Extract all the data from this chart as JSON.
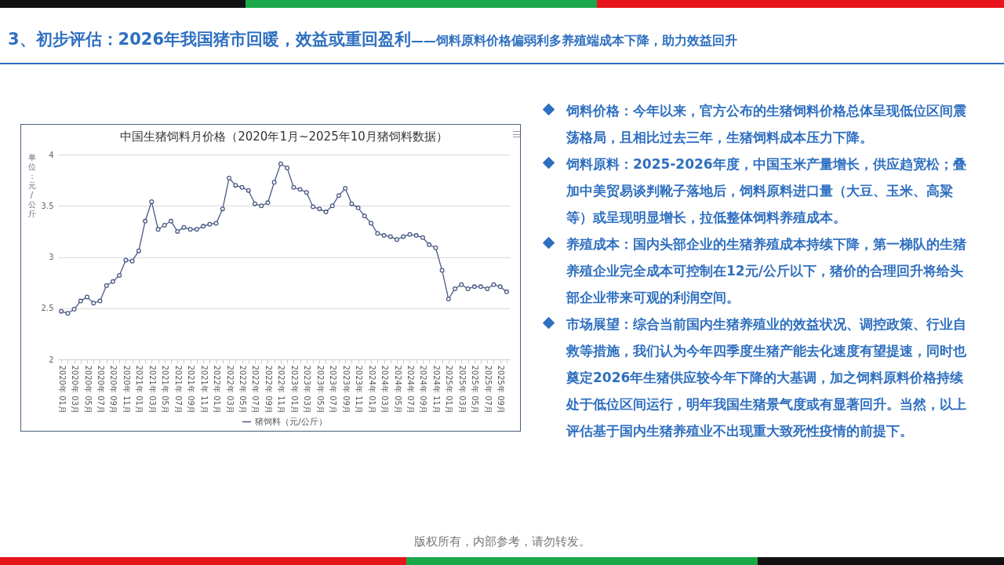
{
  "chart_data": {
    "type": "line",
    "title": "中国生猪饲料月价格（2020年1月~2025年10月猪饲料数据）",
    "ylabel": "单位：元/公斤",
    "categories": [
      "2020年 01月",
      null,
      "2020年 03月",
      null,
      "2020年 05月",
      null,
      "2020年 07月",
      null,
      "2020年 09月",
      null,
      "2020年 11月",
      null,
      "2021年 01月",
      null,
      "2021年 03月",
      null,
      "2021年 05月",
      null,
      "2021年 07月",
      null,
      "2021年 09月",
      null,
      "2021年 11月",
      null,
      "2022年 01月",
      null,
      "2022年 03月",
      null,
      "2022年 05月",
      null,
      "2022年 07月",
      null,
      "2022年 09月",
      null,
      "2022年 11月",
      null,
      "2023年 01月",
      null,
      "2023年 03月",
      null,
      "2023年 05月",
      null,
      "2023年 07月",
      null,
      "2023年 09月",
      null,
      "2023年 11月",
      null,
      "2024年 01月",
      null,
      "2024年 03月",
      null,
      "2024年 05月",
      null,
      "2024年 07月",
      null,
      "2024年 09月",
      null,
      "2024年 11月",
      null,
      "2025年 01月",
      null,
      "2025年 03月",
      null,
      "2025年 05月",
      null,
      "2025年 07月",
      null,
      "2025年 09月",
      null
    ],
    "series": [
      {
        "name": "猪饲料（元/公斤）",
        "color": "#4a5a85",
        "values": [
          2.47,
          2.45,
          2.49,
          2.57,
          2.61,
          2.55,
          2.57,
          2.72,
          2.76,
          2.82,
          2.97,
          2.96,
          3.06,
          3.35,
          3.54,
          3.27,
          3.31,
          3.35,
          3.25,
          3.29,
          3.27,
          3.27,
          3.3,
          3.32,
          3.33,
          3.47,
          3.77,
          3.7,
          3.68,
          3.65,
          3.52,
          3.5,
          3.53,
          3.73,
          3.91,
          3.87,
          3.68,
          3.66,
          3.63,
          3.49,
          3.47,
          3.44,
          3.5,
          3.6,
          3.67,
          3.52,
          3.48,
          3.4,
          3.33,
          3.23,
          3.21,
          3.2,
          3.17,
          3.2,
          3.22,
          3.21,
          3.19,
          3.12,
          3.09,
          2.87,
          2.59,
          2.69,
          2.73,
          2.69,
          2.71,
          2.71,
          2.69,
          2.73,
          2.71,
          2.66
        ]
      }
    ],
    "ylim": [
      2,
      4
    ],
    "yticks": [
      2,
      2.5,
      3,
      3.5,
      4
    ],
    "grid": "y",
    "legend": "bottom",
    "marker": "circle",
    "line_style": "solid",
    "annotations": [
      "3、初步评估：2026年我国猪市回暖，效益或重回盈利",
      "——饲料原料价格偏弱利多养殖端成本下降，助力效益回升",
      "饲料价格：今年以来，官方公布的生猪饲料价格总体呈现低位区间震荡格局，且相比过去三年，生猪饲料成本压力下降。",
      "饲料原料：2025-2026年度，中国玉米产量增长，供应趋宽松；叠加中美贸易谈判靴子落地后，饲料原料进口量（大豆、玉米、高粱等）或呈现明显增长，拉低整体饲料养殖成本。",
      "养殖成本：国内头部企业的生猪养殖成本持续下降，第一梯队的生猪养殖企业完全成本可控制在12元/公斤以下，猪价的合理回升将给头部企业带来可观的利润空间。",
      "市场展望：综合当前国内生猪养殖业的效益状况、调控政策、行业自救等措施，我们认为今年四季度生猪产能去化速度有望提速，同时也奠定2026年生猪供应较今年下降的大基调，加之饲料原料价格持续处于低位区间运行，明年我国生猪景气度或有显著回升。当然，以上评估基于国内生猪养殖业不出现重大致死性疫情的前提下。",
      "版权所有，内部参考，请勿转发。"
    ]
  }
}
